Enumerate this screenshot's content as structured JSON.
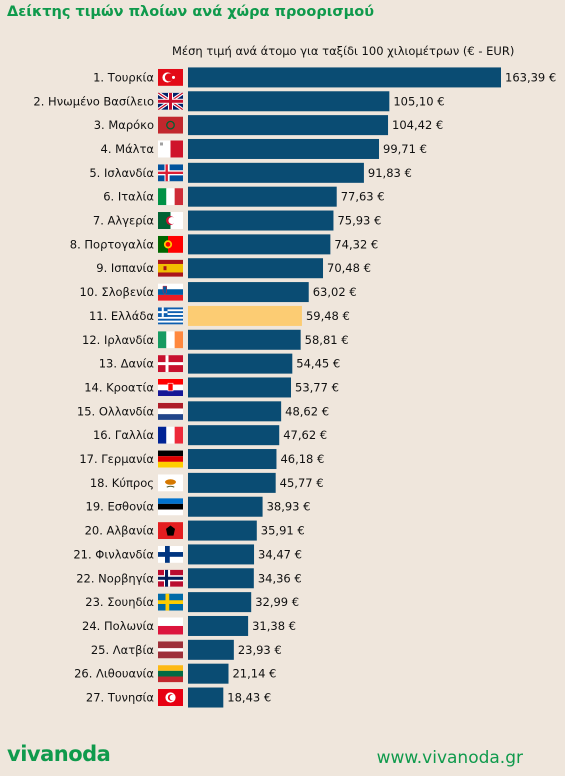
{
  "title": "Δείκτης τιμών πλοίων ανά χώρα προορισμού",
  "subtitle": "Μέση τιμή ανά άτομο για ταξίδι 100 χιλιομέτρων (€ - EUR)",
  "footer": {
    "logo": "vivanoda",
    "url": "www.vivanoda.gr"
  },
  "colors": {
    "bar": "#0a4c73",
    "highlight": "#fccc73",
    "brand": "#0f9a4c",
    "background": "#efe6dc"
  },
  "chart_data": {
    "type": "bar",
    "orientation": "horizontal",
    "title": "Δείκτης τιμών πλοίων ανά χώρα προορισμού",
    "subtitle": "Μέση τιμή ανά άτομο για ταξίδι 100 χιλιομέτρων (€ - EUR)",
    "categories": [
      "1. Τουρκία",
      "2. Ηνωμένο Βασίλειο",
      "3. Μαρόκο",
      "4. Μάλτα",
      "5. Ισλανδία",
      "6. Ιταλία",
      "7. Αλγερία",
      "8. Πορτογαλία",
      "9. Ισπανία",
      "10. Σλοβενία",
      "11. Ελλάδα",
      "12. Ιρλανδία",
      "13. Δανία",
      "14. Κροατία",
      "15. Ολλανδία",
      "16. Γαλλία",
      "17. Γερμανία",
      "18. Κύπρος",
      "19. Εσθονία",
      "20. Αλβανία",
      "21. Φινλανδία",
      "22. Νορβηγία",
      "23. Σουηδία",
      "24. Πολωνία",
      "25. Λατβία",
      "26. Λιθουανία",
      "27. Τυνησία"
    ],
    "values": [
      163.39,
      105.1,
      104.42,
      99.71,
      91.83,
      77.63,
      75.93,
      74.32,
      70.48,
      63.02,
      59.48,
      58.81,
      54.45,
      53.77,
      48.62,
      47.62,
      46.18,
      45.77,
      38.93,
      35.91,
      34.47,
      34.36,
      32.99,
      31.38,
      23.93,
      21.14,
      18.43
    ],
    "value_labels": [
      "163,39 €",
      "105,10 €",
      "104,42 €",
      "99,71 €",
      "91,83 €",
      "77,63 €",
      "75,93 €",
      "74,32 €",
      "70,48 €",
      "63,02 €",
      "59,48 €",
      "58,81 €",
      "54,45 €",
      "53,77 €",
      "48,62 €",
      "47,62 €",
      "46,18 €",
      "45,77 €",
      "38,93 €",
      "35,91 €",
      "34,47 €",
      "34,36 €",
      "32,99 €",
      "31,38 €",
      "23,93 €",
      "21,14 €",
      "18,43 €"
    ],
    "flags": [
      "tr",
      "gb",
      "ma",
      "mt",
      "is",
      "it",
      "dz",
      "pt",
      "es",
      "si",
      "gr",
      "ie",
      "dk",
      "hr",
      "nl",
      "fr",
      "de",
      "cy",
      "ee",
      "al",
      "fi",
      "no",
      "se",
      "pl",
      "lv",
      "lt",
      "tn"
    ],
    "highlight_category": "11. Ελλάδα",
    "xlim": [
      0,
      163.39
    ],
    "grid": false,
    "legend": "none"
  }
}
